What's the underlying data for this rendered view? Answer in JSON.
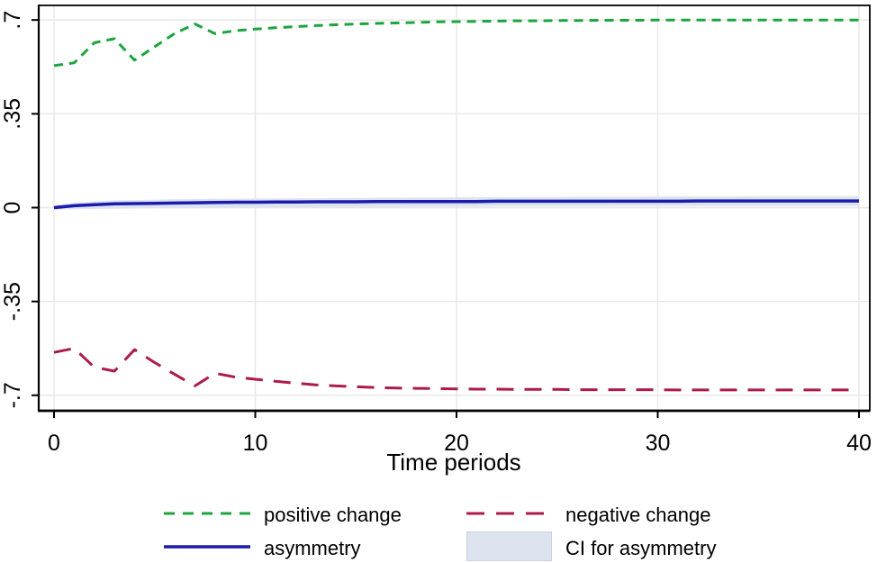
{
  "figure": {
    "background": "#ffffff",
    "text_color": "#000000"
  },
  "chart_data": {
    "type": "line",
    "title": "",
    "xlabel": "Time periods",
    "ylabel": "",
    "xlim": [
      -0.8,
      40.6
    ],
    "ylim": [
      -0.76,
      0.755
    ],
    "grid": true,
    "legend_position": "bottom",
    "colors": {
      "grid": "#e6e6e6",
      "axis": "#000000",
      "background": "#ffffff"
    },
    "x_ticks": {
      "values": [
        0,
        10,
        20,
        30,
        40
      ],
      "labels": [
        "0",
        "10",
        "20",
        "30",
        "40"
      ]
    },
    "y_ticks": {
      "values": [
        0.7,
        0.35,
        0,
        -0.35,
        -0.7
      ],
      "labels": [
        ".7",
        ".35",
        "0",
        "-.35",
        "-.7"
      ]
    },
    "x": [
      0,
      1,
      2,
      3,
      4,
      5,
      6,
      7,
      8,
      9,
      10,
      11,
      12,
      13,
      14,
      15,
      16,
      17,
      18,
      19,
      20,
      21,
      22,
      23,
      24,
      25,
      26,
      27,
      28,
      29,
      30,
      31,
      32,
      33,
      34,
      35,
      36,
      37,
      38,
      39,
      40
    ],
    "series": [
      {
        "name": "positive change",
        "style": "dashed-short",
        "color": "#1ca53e",
        "values": [
          0.53,
          0.54,
          0.615,
          0.63,
          0.55,
          0.6,
          0.65,
          0.685,
          0.649,
          0.66,
          0.666,
          0.671,
          0.675,
          0.679,
          0.682,
          0.685,
          0.687,
          0.689,
          0.691,
          0.693,
          0.694,
          0.695,
          0.696,
          0.697,
          0.697,
          0.698,
          0.698,
          0.699,
          0.699,
          0.699,
          0.7,
          0.7,
          0.7,
          0.7,
          0.7,
          0.7,
          0.7,
          0.7,
          0.7,
          0.7,
          0.7
        ]
      },
      {
        "name": "negative change",
        "style": "dashed-long",
        "color": "#ad1a4b",
        "values": [
          -0.54,
          -0.525,
          -0.595,
          -0.61,
          -0.53,
          -0.578,
          -0.622,
          -0.665,
          -0.618,
          -0.632,
          -0.64,
          -0.648,
          -0.655,
          -0.661,
          -0.665,
          -0.668,
          -0.671,
          -0.673,
          -0.674,
          -0.675,
          -0.676,
          -0.677,
          -0.677,
          -0.678,
          -0.678,
          -0.678,
          -0.679,
          -0.679,
          -0.679,
          -0.679,
          -0.679,
          -0.68,
          -0.68,
          -0.68,
          -0.68,
          -0.68,
          -0.68,
          -0.68,
          -0.68,
          -0.68,
          -0.68
        ]
      },
      {
        "name": "asymmetry",
        "style": "solid",
        "color": "#1b1bad",
        "values": [
          0.0,
          0.007,
          0.011,
          0.014,
          0.015,
          0.016,
          0.017,
          0.018,
          0.019,
          0.02,
          0.02,
          0.021,
          0.021,
          0.022,
          0.022,
          0.022,
          0.023,
          0.023,
          0.023,
          0.023,
          0.023,
          0.023,
          0.024,
          0.024,
          0.024,
          0.024,
          0.024,
          0.024,
          0.024,
          0.024,
          0.024,
          0.024,
          0.025,
          0.025,
          0.025,
          0.025,
          0.025,
          0.025,
          0.025,
          0.025,
          0.025
        ]
      },
      {
        "name": "CI for asymmetry",
        "style": "band",
        "color": "#dde3ef",
        "upper": [
          0.008,
          0.018,
          0.024,
          0.027,
          0.028,
          0.03,
          0.031,
          0.032,
          0.033,
          0.033,
          0.034,
          0.034,
          0.035,
          0.035,
          0.036,
          0.036,
          0.037,
          0.037,
          0.038,
          0.038,
          0.039,
          0.039,
          0.039,
          0.04,
          0.04,
          0.04,
          0.041,
          0.041,
          0.041,
          0.041,
          0.042,
          0.042,
          0.042,
          0.042,
          0.042,
          0.043,
          0.043,
          0.043,
          0.043,
          0.043,
          0.043
        ],
        "lower": [
          -0.008,
          -0.006,
          -0.005,
          -0.004,
          -0.003,
          -0.003,
          -0.002,
          -0.002,
          -0.001,
          -0.001,
          0.0,
          0.001,
          0.001,
          0.002,
          0.002,
          0.003,
          0.003,
          0.003,
          0.004,
          0.004,
          0.004,
          0.004,
          0.005,
          0.005,
          0.005,
          0.005,
          0.005,
          0.005,
          0.006,
          0.006,
          0.006,
          0.006,
          0.006,
          0.006,
          0.006,
          0.006,
          0.006,
          0.006,
          0.006,
          0.006,
          0.006
        ]
      }
    ]
  },
  "legend": {
    "items": [
      {
        "label": "positive change"
      },
      {
        "label": "negative change"
      },
      {
        "label": "asymmetry"
      },
      {
        "label": "CI for asymmetry"
      }
    ]
  }
}
